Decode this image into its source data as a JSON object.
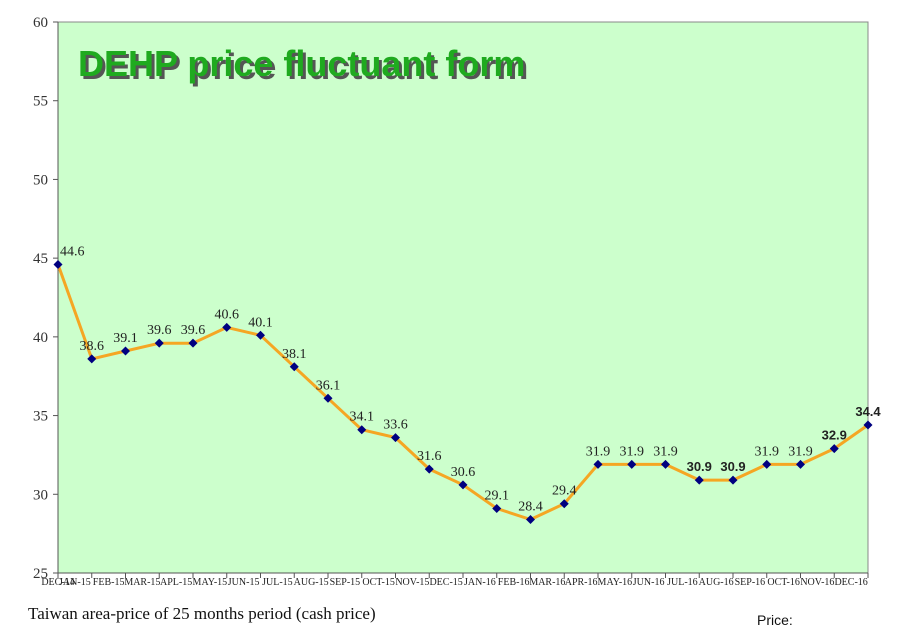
{
  "footer": {
    "caption": "Taiwan area-price of 25 months period (cash price)",
    "price_label": "Price:"
  },
  "chart_data": {
    "type": "line",
    "title": "DEHP price fluctuant form",
    "xlabel": "",
    "ylabel": "",
    "ylim": [
      25,
      60
    ],
    "yticks": [
      25,
      30,
      35,
      40,
      45,
      50,
      55,
      60
    ],
    "grid": false,
    "categories": [
      "DEC-14",
      "JAN-15",
      "FEB-15",
      "MAR-15",
      "APL-15",
      "MAY-15",
      "JUN-15",
      "JUL-15",
      "AUG-15",
      "SEP-15",
      "OCT-15",
      "NOV-15",
      "DEC-15",
      "JAN-16",
      "FEB-16",
      "MAR-16",
      "APR-16",
      "MAY-16",
      "JUN-16",
      "JUL-16",
      "AUG-16",
      "SEP-16",
      "OCT-16",
      "NOV-16",
      "DEC-16"
    ],
    "values": [
      44.6,
      38.6,
      39.1,
      39.6,
      39.6,
      40.6,
      40.1,
      38.1,
      36.1,
      34.1,
      33.6,
      31.6,
      30.6,
      29.1,
      28.4,
      29.4,
      31.9,
      31.9,
      31.9,
      30.9,
      30.9,
      31.9,
      31.9,
      32.9,
      34.4
    ],
    "bold_labels": [
      19,
      20,
      23,
      24
    ],
    "colors": {
      "plot_bg": "#ccffcc",
      "line": "#f5a623",
      "marker": "#000080",
      "title": "#1faa1f",
      "title_shadow": "#555555"
    }
  }
}
